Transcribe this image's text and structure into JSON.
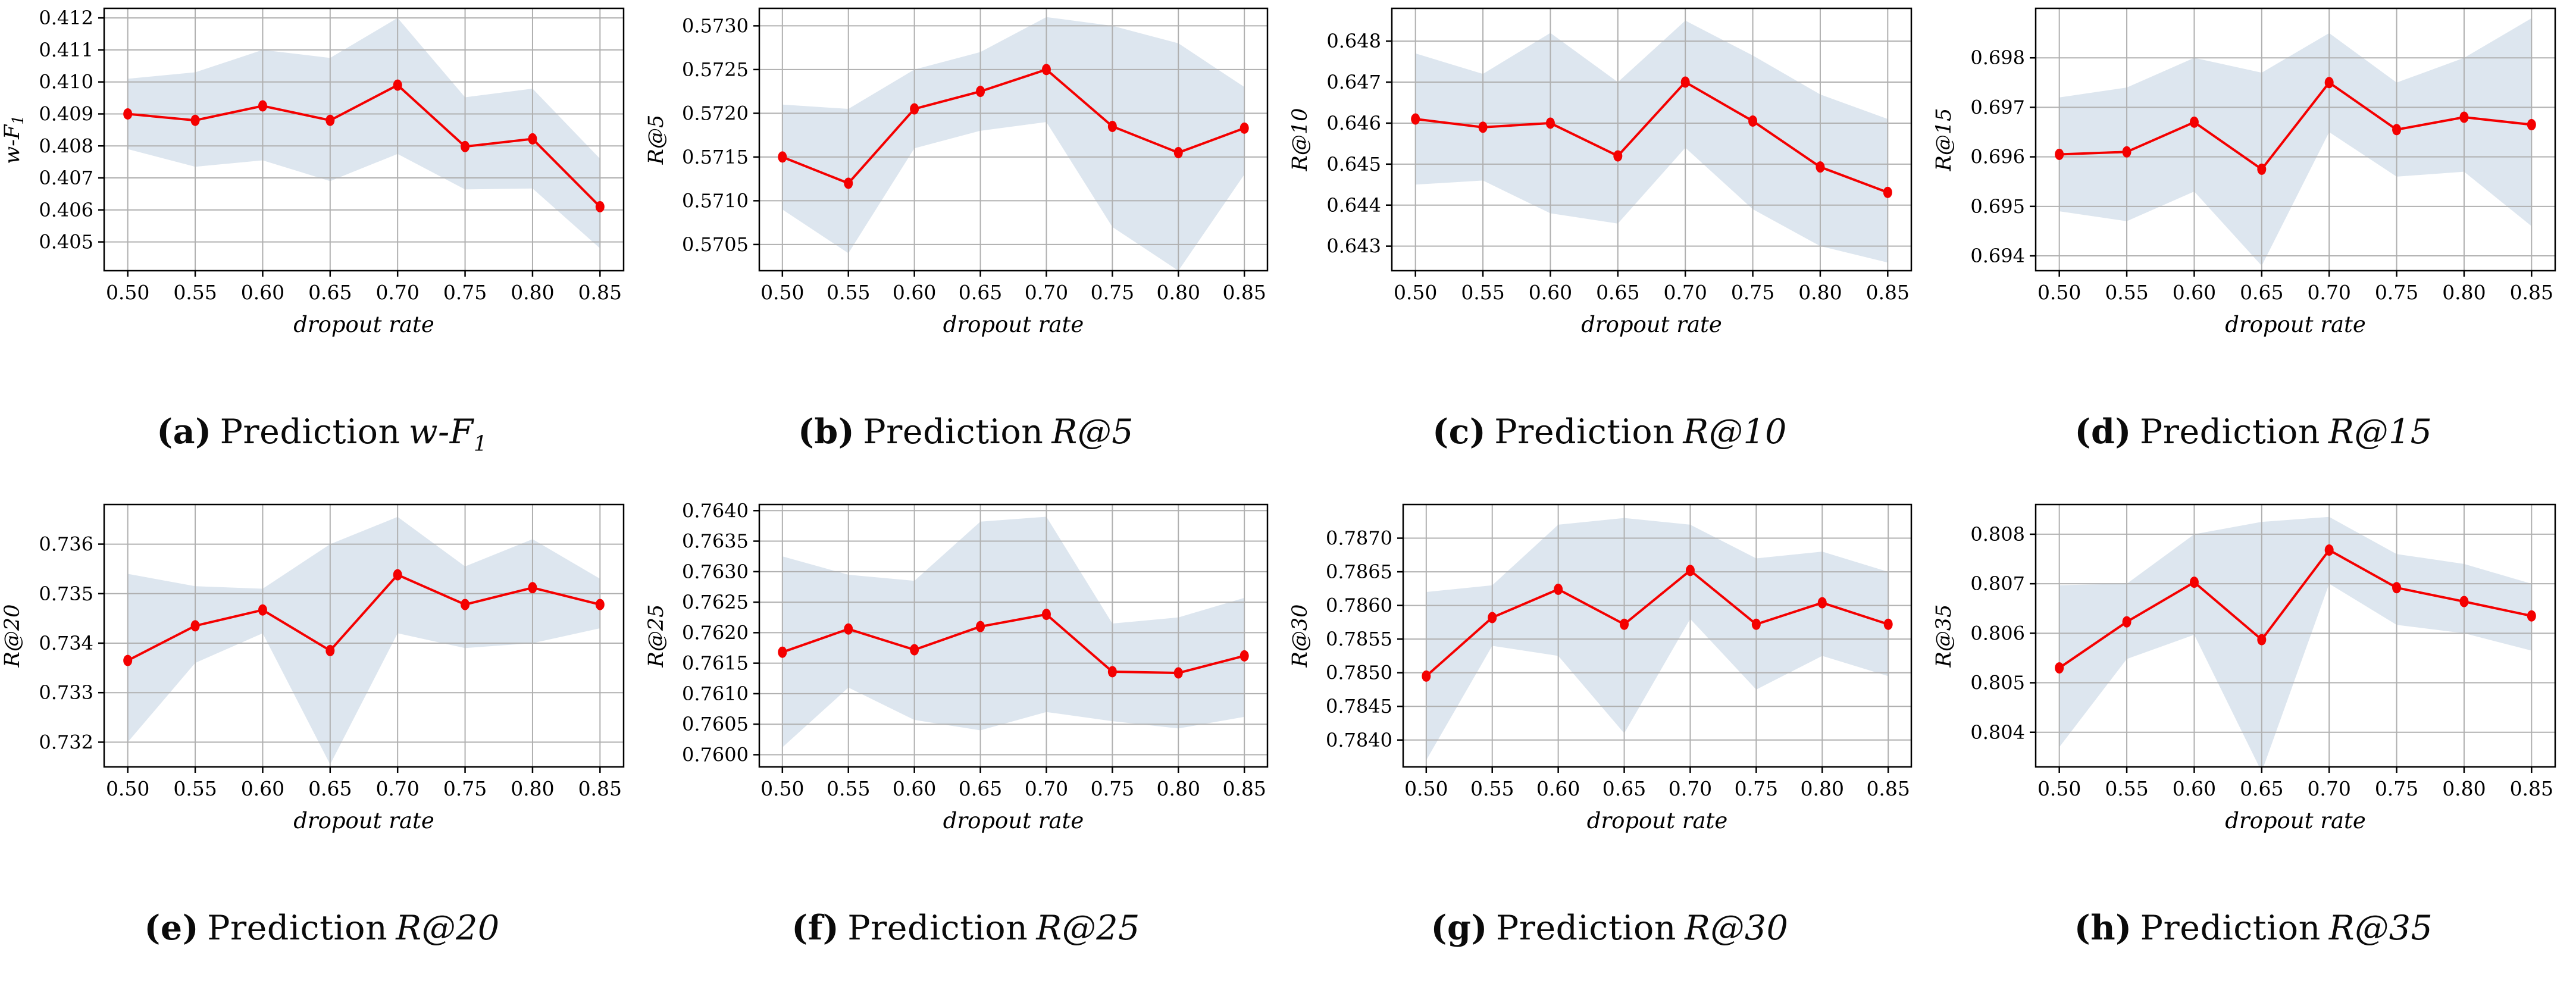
{
  "chart_data": {
    "type": "line",
    "description": "Eight line subplots of prediction metrics vs dropout rate, each with a red mean line with round markers and a light-blue shaded variance band",
    "x_label": "dropout rate",
    "x": [
      0.5,
      0.55,
      0.6,
      0.65,
      0.7,
      0.75,
      0.8,
      0.85
    ],
    "x_tick_labels": [
      "0.50",
      "0.55",
      "0.60",
      "0.65",
      "0.70",
      "0.75",
      "0.80",
      "0.85"
    ],
    "xlim": [
      0.4825,
      0.8675
    ],
    "grid": true,
    "legend": false,
    "colors": {
      "line": "#f40000",
      "marker": "#f40000",
      "band": "#dde6ef",
      "gridline": "#b0b0b0",
      "border": "#000000",
      "text": "#000000",
      "background": "#ffffff"
    },
    "charts": [
      {
        "caption": {
          "letter": "(a)",
          "word": "Prediction",
          "metric": "w-F",
          "metric_sub": "1"
        },
        "y_label": "w-F",
        "y_label_sub": "1",
        "y_ticks": [
          "0.405",
          "0.406",
          "0.407",
          "0.408",
          "0.409",
          "0.410",
          "0.411",
          "0.412"
        ],
        "ylim": [
          0.4041,
          0.4123
        ],
        "values": [
          0.409,
          0.4088,
          0.40925,
          0.4088,
          0.4099,
          0.40798,
          0.40822,
          0.4061
        ],
        "band_upper": [
          0.4101,
          0.4103,
          0.411,
          0.41075,
          0.412,
          0.40952,
          0.40979,
          0.4076
        ],
        "band_lower": [
          0.4079,
          0.40735,
          0.40755,
          0.4069,
          0.40775,
          0.40664,
          0.40667,
          0.4048
        ]
      },
      {
        "caption": {
          "letter": "(b)",
          "word": "Prediction",
          "metric": "R@5",
          "metric_sub": ""
        },
        "y_label": "R@5",
        "y_label_sub": "",
        "y_ticks": [
          "0.5705",
          "0.5710",
          "0.5715",
          "0.5720",
          "0.5725",
          "0.5730"
        ],
        "ylim": [
          0.5702,
          0.5732
        ],
        "values": [
          0.5715,
          0.5712,
          0.57205,
          0.57225,
          0.5725,
          0.57185,
          0.57155,
          0.57183
        ],
        "band_upper": [
          0.5721,
          0.57205,
          0.5725,
          0.5727,
          0.5731,
          0.573,
          0.5728,
          0.5723
        ],
        "band_lower": [
          0.5709,
          0.5704,
          0.5716,
          0.5718,
          0.5719,
          0.5707,
          0.5702,
          0.5713
        ]
      },
      {
        "caption": {
          "letter": "(c)",
          "word": "Prediction",
          "metric": "R@10",
          "metric_sub": ""
        },
        "y_label": "R@10",
        "y_label_sub": "",
        "y_ticks": [
          "0.643",
          "0.644",
          "0.645",
          "0.646",
          "0.647",
          "0.648"
        ],
        "ylim": [
          0.6424,
          0.6488
        ],
        "values": [
          0.6461,
          0.6459,
          0.646,
          0.6452,
          0.647,
          0.64605,
          0.64493,
          0.64431
        ],
        "band_upper": [
          0.6477,
          0.6472,
          0.6482,
          0.647,
          0.6485,
          0.64765,
          0.6467,
          0.6461
        ],
        "band_lower": [
          0.6445,
          0.6446,
          0.6438,
          0.64355,
          0.6454,
          0.6439,
          0.643,
          0.6426
        ]
      },
      {
        "caption": {
          "letter": "(d)",
          "word": "Prediction",
          "metric": "R@15",
          "metric_sub": ""
        },
        "y_label": "R@15",
        "y_label_sub": "",
        "y_ticks": [
          "0.694",
          "0.695",
          "0.696",
          "0.697",
          "0.698"
        ],
        "ylim": [
          0.6937,
          0.699
        ],
        "values": [
          0.69605,
          0.6961,
          0.6967,
          0.69575,
          0.6975,
          0.69655,
          0.6968,
          0.69665
        ],
        "band_upper": [
          0.6972,
          0.6974,
          0.698,
          0.6977,
          0.6985,
          0.6975,
          0.698,
          0.6988
        ],
        "band_lower": [
          0.6949,
          0.6947,
          0.6953,
          0.6938,
          0.6965,
          0.6956,
          0.6957,
          0.6946
        ]
      },
      {
        "caption": {
          "letter": "(e)",
          "word": "Prediction",
          "metric": "R@20",
          "metric_sub": ""
        },
        "y_label": "R@20",
        "y_label_sub": "",
        "y_ticks": [
          "0.732",
          "0.733",
          "0.734",
          "0.735",
          "0.736"
        ],
        "ylim": [
          0.7315,
          0.7368
        ],
        "values": [
          0.73365,
          0.73435,
          0.73467,
          0.73385,
          0.73538,
          0.73478,
          0.73512,
          0.73478
        ],
        "band_upper": [
          0.7354,
          0.73515,
          0.7351,
          0.736,
          0.73655,
          0.73555,
          0.7361,
          0.7353
        ],
        "band_lower": [
          0.732,
          0.7336,
          0.7342,
          0.73155,
          0.7342,
          0.7339,
          0.734,
          0.7343
        ]
      },
      {
        "caption": {
          "letter": "(f)",
          "word": "Prediction",
          "metric": "R@25",
          "metric_sub": ""
        },
        "y_label": "R@25",
        "y_label_sub": "",
        "y_ticks": [
          "0.7600",
          "0.7605",
          "0.7610",
          "0.7615",
          "0.7620",
          "0.7625",
          "0.7630",
          "0.7635",
          "0.7640"
        ],
        "ylim": [
          0.7598,
          0.7641
        ],
        "values": [
          0.76168,
          0.76206,
          0.76172,
          0.7621,
          0.7623,
          0.76136,
          0.76134,
          0.76162
        ],
        "band_upper": [
          0.76325,
          0.76295,
          0.76285,
          0.76382,
          0.7639,
          0.76215,
          0.76225,
          0.76257
        ],
        "band_lower": [
          0.76012,
          0.7611,
          0.76057,
          0.7604,
          0.7607,
          0.76055,
          0.76043,
          0.76062
        ]
      },
      {
        "caption": {
          "letter": "(g)",
          "word": "Prediction",
          "metric": "R@30",
          "metric_sub": ""
        },
        "y_label": "R@30",
        "y_label_sub": "",
        "y_ticks": [
          "0.7840",
          "0.7845",
          "0.7850",
          "0.7855",
          "0.7860",
          "0.7865",
          "0.7870"
        ],
        "ylim": [
          0.7836,
          0.7875
        ],
        "values": [
          0.78495,
          0.78582,
          0.78624,
          0.78572,
          0.78652,
          0.78572,
          0.78604,
          0.78572
        ],
        "band_upper": [
          0.7862,
          0.7863,
          0.7872,
          0.7873,
          0.7872,
          0.7867,
          0.7868,
          0.7865
        ],
        "band_lower": [
          0.7837,
          0.7854,
          0.78525,
          0.7841,
          0.7858,
          0.78475,
          0.78525,
          0.78495
        ]
      },
      {
        "caption": {
          "letter": "(h)",
          "word": "Prediction",
          "metric": "R@35",
          "metric_sub": ""
        },
        "y_label": "R@35",
        "y_label_sub": "",
        "y_ticks": [
          "0.804",
          "0.805",
          "0.806",
          "0.807",
          "0.808"
        ],
        "ylim": [
          0.8033,
          0.8086
        ],
        "values": [
          0.8053,
          0.80623,
          0.80703,
          0.80587,
          0.80768,
          0.80692,
          0.80664,
          0.80635
        ],
        "band_upper": [
          0.80697,
          0.807,
          0.808,
          0.80825,
          0.80835,
          0.8076,
          0.8074,
          0.807
        ],
        "band_lower": [
          0.8037,
          0.80548,
          0.80597,
          0.8032,
          0.807,
          0.80617,
          0.806,
          0.80565
        ]
      }
    ]
  }
}
